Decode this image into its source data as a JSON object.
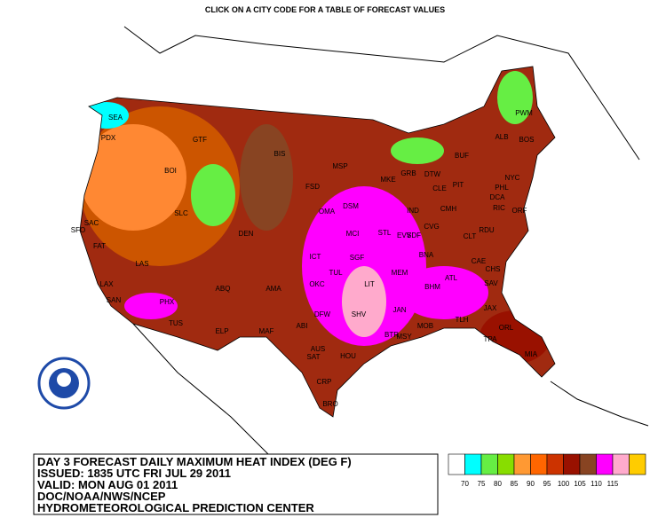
{
  "header": {
    "title": "CLICK ON A CITY CODE FOR A TABLE OF FORECAST VALUES"
  },
  "info": {
    "lines": [
      "DAY 3 FORECAST DAILY MAXIMUM HEAT INDEX (DEG F)",
      "ISSUED: 1835 UTC FRI JUL 29 2011",
      "VALID: MON AUG 01 2011",
      "DOC/NOAA/NWS/NCEP",
      "HYDROMETEOROLOGICAL PREDICTION CENTER"
    ]
  },
  "legend": {
    "colors": [
      "#ffffff",
      "#00ffff",
      "#66ee44",
      "#88dd00",
      "#ff9933",
      "#ff6600",
      "#cc3300",
      "#991100",
      "#884422",
      "#ff00ff",
      "#ffaacc",
      "#ffcc00"
    ],
    "labels": [
      70,
      75,
      80,
      85,
      90,
      95,
      100,
      105,
      110,
      115
    ]
  },
  "cities": [
    "SEA",
    "PDX",
    "GTF",
    "BIS",
    "MSP",
    "FSD",
    "GRB",
    "MKE",
    "DTW",
    "BUF",
    "ALB",
    "BOS",
    "PWM",
    "CLE",
    "PIT",
    "NYC",
    "PHL",
    "DCA",
    "RIC",
    "ORF",
    "RDU",
    "CLT",
    "CAE",
    "CHS",
    "SAV",
    "ATL",
    "BHM",
    "BNA",
    "MEM",
    "LIT",
    "SHV",
    "DFW",
    "OKC",
    "TUL",
    "ICT",
    "MCI",
    "STL",
    "SGF",
    "DSM",
    "OMA",
    "DEN",
    "SLC",
    "BOI",
    "SAC",
    "SFO",
    "FAT",
    "LAS",
    "LAX",
    "SAN",
    "PHX",
    "TUS",
    "ABQ",
    "ELP",
    "MAF",
    "AMA",
    "ABI",
    "SAT",
    "AUS",
    "HOU",
    "CRP",
    "BRO",
    "MSY",
    "BTR",
    "JAN",
    "MOB",
    "TLH",
    "JAX",
    "ORL",
    "TPA",
    "MIA",
    "IND",
    "CVG",
    "SDF",
    "CMH",
    "EVV"
  ]
}
